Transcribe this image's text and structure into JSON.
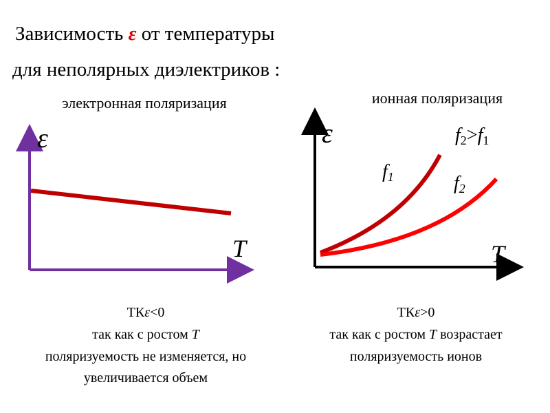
{
  "title": {
    "line1": [
      "Зависимость ",
      "ε",
      " от температуры"
    ],
    "line2": "для неполярных диэлектриков :"
  },
  "left": {
    "heading": "электронная поляризация",
    "y_label": "ε",
    "x_label": "T",
    "caption": [
      [
        "ТК",
        "ε",
        "<0"
      ],
      [
        "так как с ростом ",
        "T"
      ],
      [
        "поляризуемость не изменяется, но"
      ],
      [
        "увеличивается объем"
      ]
    ]
  },
  "right": {
    "heading": "ионная поляризация",
    "y_label": "ε",
    "x_label": "T",
    "curve_labels": [
      [
        "f",
        "1"
      ],
      [
        "f",
        "2"
      ]
    ],
    "relation": [
      "f",
      "2",
      ">",
      "f",
      "1"
    ],
    "caption": [
      [
        "ТК",
        "ε",
        ">0"
      ],
      [
        "так как с ростом ",
        "T",
        " возрастает"
      ],
      [
        "поляризуемость ионов"
      ]
    ]
  }
}
